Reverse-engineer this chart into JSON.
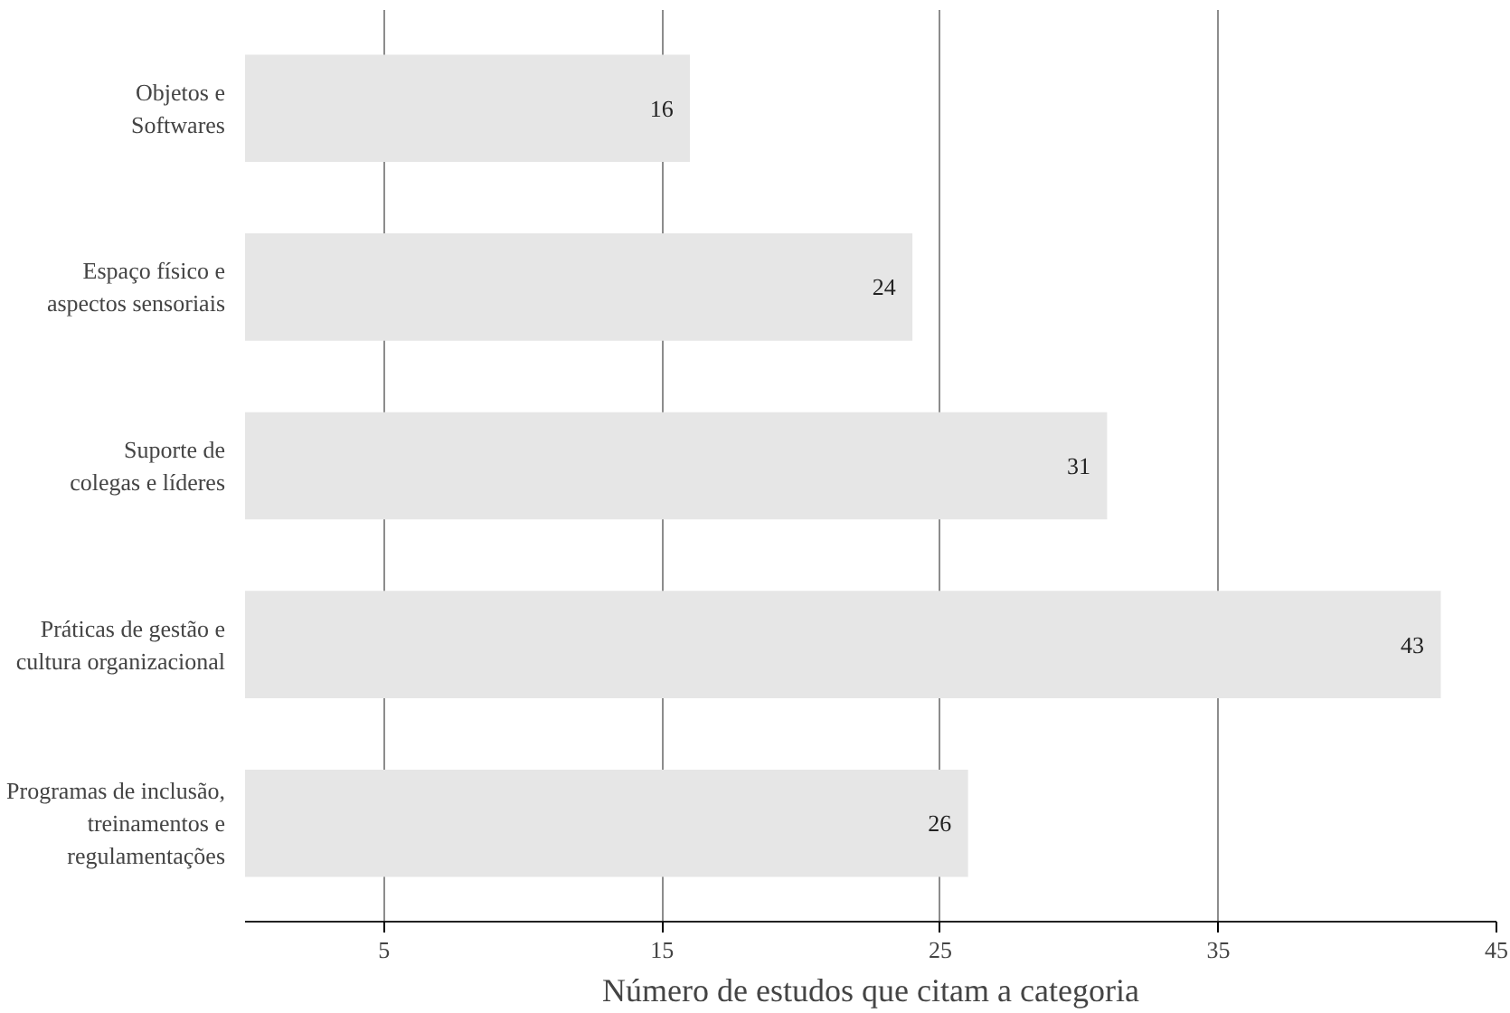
{
  "chart_data": {
    "type": "bar",
    "orientation": "horizontal",
    "xlabel": "Número de estudos que citam a categoria",
    "categories": [
      "Objetos e\nSoftwares",
      "Espaço físico e\naspectos sensoriais",
      "Suporte de\ncolegas e líderes",
      "Práticas de gestão e\ncultura organizacional",
      "Programas de inclusão,\ntreinamentos e\nregulamentações"
    ],
    "values": [
      16,
      24,
      31,
      43,
      26
    ],
    "color": "#e6e6e6",
    "xlim": [
      0,
      45
    ],
    "xticks": [
      5,
      15,
      25,
      35,
      45
    ],
    "grid": "x",
    "data_labels": true
  }
}
